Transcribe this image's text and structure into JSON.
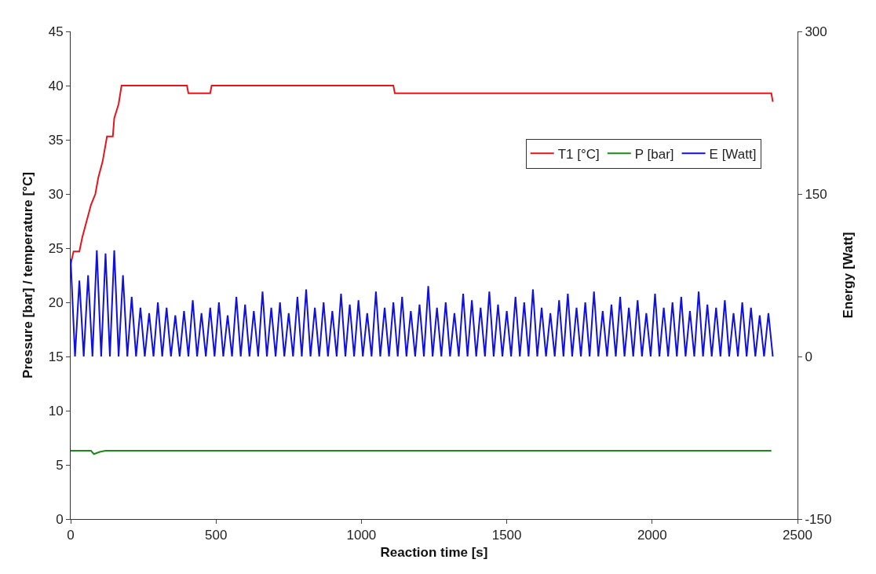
{
  "chart_data": {
    "type": "line",
    "xlabel": "Reaction time [s]",
    "ylabel": "Pressure [bar] / temperature [°C]",
    "y2label": "Energy [Watt]",
    "xlim": [
      0,
      2500
    ],
    "xticks": [
      0,
      500,
      1000,
      1500,
      2000,
      2500
    ],
    "ylim": [
      0,
      45
    ],
    "yticks": [
      0,
      5,
      10,
      15,
      20,
      25,
      30,
      35,
      40,
      45
    ],
    "y2lim": [
      -150,
      300
    ],
    "y2ticks": [
      -150,
      0,
      150,
      300
    ],
    "legend": "top right",
    "marker": "none",
    "line_style": "solid",
    "series": [
      {
        "name": "T1 [°C]",
        "color": "#e8141c",
        "x": [
          0,
          10,
          30,
          40,
          55,
          70,
          85,
          95,
          110,
          125,
          145,
          150,
          165,
          175,
          400,
          405,
          480,
          485,
          1110,
          1115,
          2410,
          2415
        ],
        "values": [
          23.5,
          24.7,
          24.7,
          26,
          27.5,
          29,
          30,
          31.5,
          33,
          35.3,
          35.3,
          37,
          38.3,
          40,
          40,
          39.3,
          39.3,
          40,
          40,
          39.3,
          39.3,
          38.5
        ]
      },
      {
        "name": "P [bar]",
        "color": "#1a8a1a",
        "x": [
          0,
          70,
          80,
          100,
          120,
          2410
        ],
        "values": [
          6.3,
          6.3,
          6.0,
          6.2,
          6.3,
          6.3
        ]
      },
      {
        "name": "E [Watt]",
        "color": "#1010e0",
        "axis": "y2",
        "x": [
          0,
          15,
          30,
          45,
          60,
          75,
          90,
          105,
          120,
          135,
          150,
          165,
          180,
          195,
          210,
          225,
          240,
          255,
          270,
          285,
          300,
          315,
          330,
          345,
          360,
          375,
          390,
          405,
          420,
          435,
          450,
          465,
          480,
          495,
          510,
          525,
          540,
          555,
          570,
          585,
          600,
          615,
          630,
          645,
          660,
          675,
          690,
          705,
          720,
          735,
          750,
          765,
          780,
          795,
          810,
          825,
          840,
          855,
          870,
          885,
          900,
          915,
          930,
          945,
          960,
          975,
          990,
          1005,
          1020,
          1035,
          1050,
          1065,
          1080,
          1095,
          1110,
          1125,
          1140,
          1155,
          1170,
          1185,
          1200,
          1215,
          1230,
          1245,
          1260,
          1275,
          1290,
          1305,
          1320,
          1335,
          1350,
          1365,
          1380,
          1395,
          1410,
          1425,
          1440,
          1455,
          1470,
          1485,
          1500,
          1515,
          1530,
          1545,
          1560,
          1575,
          1590,
          1605,
          1620,
          1635,
          1650,
          1665,
          1680,
          1695,
          1710,
          1725,
          1740,
          1755,
          1770,
          1785,
          1800,
          1815,
          1830,
          1845,
          1860,
          1875,
          1890,
          1905,
          1920,
          1935,
          1950,
          1965,
          1980,
          1995,
          2010,
          2025,
          2040,
          2055,
          2070,
          2085,
          2100,
          2115,
          2130,
          2145,
          2160,
          2175,
          2190,
          2205,
          2220,
          2235,
          2250,
          2265,
          2280,
          2295,
          2310,
          2325,
          2340,
          2355,
          2370,
          2385,
          2400,
          2415
        ],
        "values": [
          90,
          0,
          70,
          0,
          75,
          0,
          98,
          0,
          95,
          0,
          98,
          0,
          75,
          0,
          55,
          0,
          45,
          0,
          40,
          0,
          50,
          0,
          45,
          0,
          38,
          0,
          42,
          0,
          52,
          0,
          40,
          0,
          45,
          0,
          50,
          0,
          38,
          0,
          55,
          0,
          48,
          0,
          42,
          0,
          60,
          0,
          45,
          0,
          50,
          0,
          40,
          0,
          55,
          0,
          62,
          0,
          45,
          0,
          50,
          0,
          42,
          0,
          58,
          0,
          48,
          0,
          52,
          0,
          40,
          0,
          60,
          0,
          45,
          0,
          50,
          0,
          55,
          0,
          42,
          0,
          48,
          0,
          65,
          0,
          45,
          0,
          50,
          0,
          40,
          0,
          58,
          0,
          52,
          0,
          45,
          0,
          60,
          0,
          48,
          0,
          42,
          0,
          55,
          0,
          50,
          0,
          62,
          0,
          45,
          0,
          40,
          0,
          52,
          0,
          58,
          0,
          45,
          0,
          50,
          0,
          60,
          0,
          42,
          0,
          48,
          0,
          55,
          0,
          45,
          0,
          52,
          0,
          40,
          0,
          58,
          0,
          45,
          0,
          50,
          0,
          55,
          0,
          42,
          0,
          60,
          0,
          48,
          0,
          45,
          0,
          52,
          0,
          40,
          0,
          50,
          0,
          45,
          0,
          38,
          0,
          40,
          0
        ]
      }
    ]
  }
}
